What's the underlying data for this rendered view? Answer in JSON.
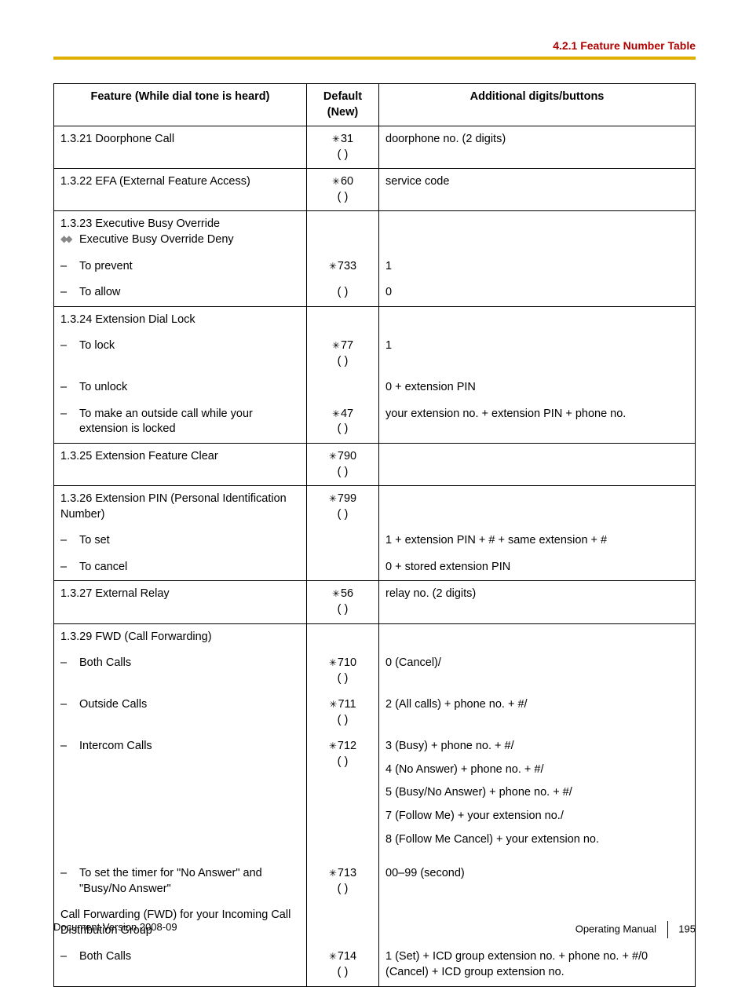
{
  "header": {
    "section": "4.2.1 Feature Number Table"
  },
  "table": {
    "headers": {
      "feature": "Feature (While dial tone is heard)",
      "default": "Default\n(New)",
      "additional": "Additional digits/buttons"
    },
    "rows": [
      {
        "feature": "1.3.21  Doorphone Call",
        "default_main": "31",
        "default_note": "( )",
        "additional": "doorphone no. (2 digits)"
      },
      {
        "feature": "1.3.22  EFA (External Feature Access)",
        "default_main": "60",
        "default_wide": "(          )",
        "additional": "service code"
      },
      {
        "feature_main": "1.3.23  Executive Busy Override",
        "feature_sub_icon": true,
        "feature_sub": "Executive Busy Override Deny",
        "default": "",
        "additional": "",
        "group_start": true
      },
      {
        "sub": "To prevent",
        "default_main": "733",
        "additional": "1",
        "group_mid": true
      },
      {
        "sub": "To allow",
        "default_wide": "(          )",
        "additional": "0",
        "group_end": true
      },
      {
        "feature": "1.3.24  Extension Dial Lock",
        "default": "",
        "additional": "",
        "group_start": true
      },
      {
        "sub": "To lock",
        "default_main": "77",
        "default_note": "( )",
        "additional": "1",
        "group_mid": true
      },
      {
        "sub": "To unlock",
        "default": "",
        "additional": "0 + extension PIN",
        "group_mid": true
      },
      {
        "sub": "To make an outside call while your extension is locked",
        "default_main": "47",
        "default_wide": "(          )",
        "additional": "your extension no. + extension PIN + phone no.",
        "group_end": true
      },
      {
        "feature": "1.3.25  Extension Feature Clear",
        "default_main": "790",
        "default_wide": "(          )",
        "additional": ""
      },
      {
        "feature": "1.3.26  Extension PIN (Personal Identification Number)",
        "default_main": "799",
        "default_wide": "(          )",
        "additional": "",
        "group_start": true
      },
      {
        "sub": "To set",
        "default": "",
        "additional": "1 + extension PIN + # + same extension + #",
        "group_mid": true
      },
      {
        "sub": "To cancel",
        "default": "",
        "additional": "0 + stored extension PIN",
        "group_end": true
      },
      {
        "feature": "1.3.27  External Relay",
        "default_main": "56",
        "default_wide": "(          )",
        "additional": "relay no. (2 digits)"
      },
      {
        "feature": "1.3.29  FWD (Call Forwarding)",
        "default": "",
        "additional": "",
        "group_start": true
      },
      {
        "sub": "Both Calls",
        "default_main": "710",
        "default_note": "( )",
        "additional": "0 (Cancel)/",
        "group_mid": true
      },
      {
        "sub": "Outside Calls",
        "default_main": "711",
        "default_note": "( )",
        "additional": "2 (All calls) + phone no. + #/",
        "group_mid": true
      },
      {
        "sub": "Intercom Calls",
        "default_main": "712",
        "default_note": "( )",
        "additional_lines": [
          "3 (Busy) + phone no. + #/",
          "4 (No Answer) + phone no. + #/",
          "5 (Busy/No Answer) + phone no. + #/",
          "7 (Follow Me) + your extension no./",
          "8 (Follow Me Cancel) + your extension no."
        ],
        "group_mid": true
      },
      {
        "sub": "To set the timer for \"No Answer\" and \"Busy/No Answer\"",
        "default_main": "713",
        "default_note": "( )",
        "additional": "00–99 (second)",
        "group_mid": true
      },
      {
        "feature": "Call Forwarding (FWD) for your Incoming Call Distribution Group",
        "default": "",
        "additional": "",
        "group_mid": true
      },
      {
        "sub": "Both Calls",
        "default_main": "714",
        "default_note": "( )",
        "additional": "1 (Set) + ICD group extension no. + phone no. + #/0 (Cancel) + ICD group extension no.",
        "group_end": true
      }
    ]
  },
  "footer": {
    "left": "Document Version  2008-09",
    "right_label": "Operating Manual",
    "page": "195"
  }
}
